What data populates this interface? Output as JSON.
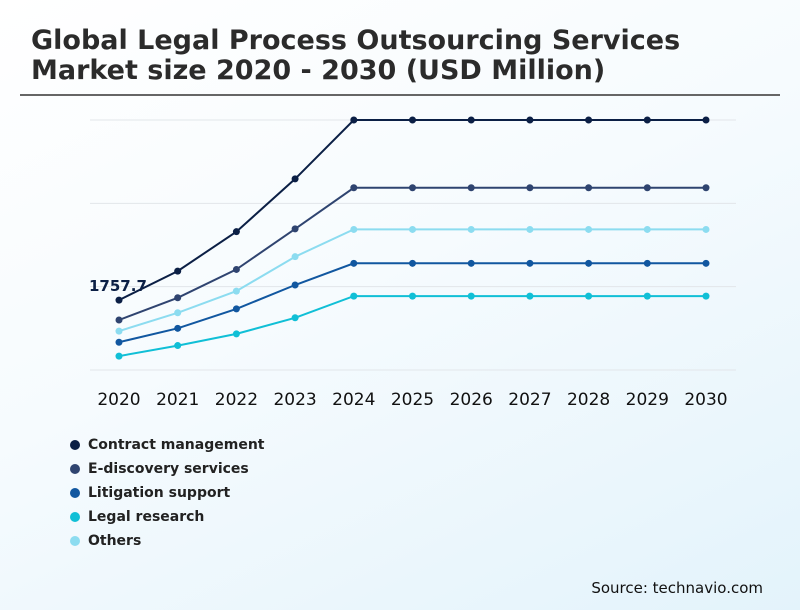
{
  "header": {
    "title": "Global Legal Process Outsourcing Services Market size 2020 - 2030 (USD Million)"
  },
  "footer": {
    "source": "Source: technavio.com"
  },
  "chart_data": {
    "type": "line",
    "title": "Global Legal Process Outsourcing Services Market size 2020 - 2030 (USD Million)",
    "xlabel": "",
    "ylabel": "",
    "x": [
      "2020",
      "2021",
      "2022",
      "2023",
      "2024",
      "2025",
      "2026",
      "2027",
      "2028",
      "2029",
      "2030"
    ],
    "ylim": [
      500,
      5000
    ],
    "grid": true,
    "legend_position": "bottom-left",
    "annotation": {
      "label": "1757.7",
      "series": "Contract management",
      "x": "2020"
    },
    "series": [
      {
        "name": "Contract management",
        "color": "#0b1f45",
        "values": [
          1757.7,
          2280,
          2990,
          3940,
          5000,
          5000,
          5000,
          5000,
          5000,
          5000,
          5000
        ]
      },
      {
        "name": "E-discovery services",
        "color": "#2f4470",
        "values": [
          1400,
          1800,
          2310,
          3040,
          3780,
          3780,
          3780,
          3780,
          3780,
          3780,
          3780
        ]
      },
      {
        "name": "Litigation support",
        "color": "#1157a0",
        "values": [
          1000,
          1250,
          1600,
          2030,
          2420,
          2420,
          2420,
          2420,
          2420,
          2420,
          2420
        ]
      },
      {
        "name": "Legal research",
        "color": "#10bfd6",
        "values": [
          750,
          940,
          1150,
          1440,
          1830,
          1830,
          1830,
          1830,
          1830,
          1830,
          1830
        ]
      },
      {
        "name": "Others",
        "color": "#8cdcf0",
        "values": [
          1200,
          1530,
          1920,
          2540,
          3030,
          3030,
          3030,
          3030,
          3030,
          3030,
          3030
        ]
      }
    ],
    "legend": [
      "Contract management",
      "E-discovery services",
      "Litigation support",
      "Legal research",
      "Others"
    ]
  }
}
